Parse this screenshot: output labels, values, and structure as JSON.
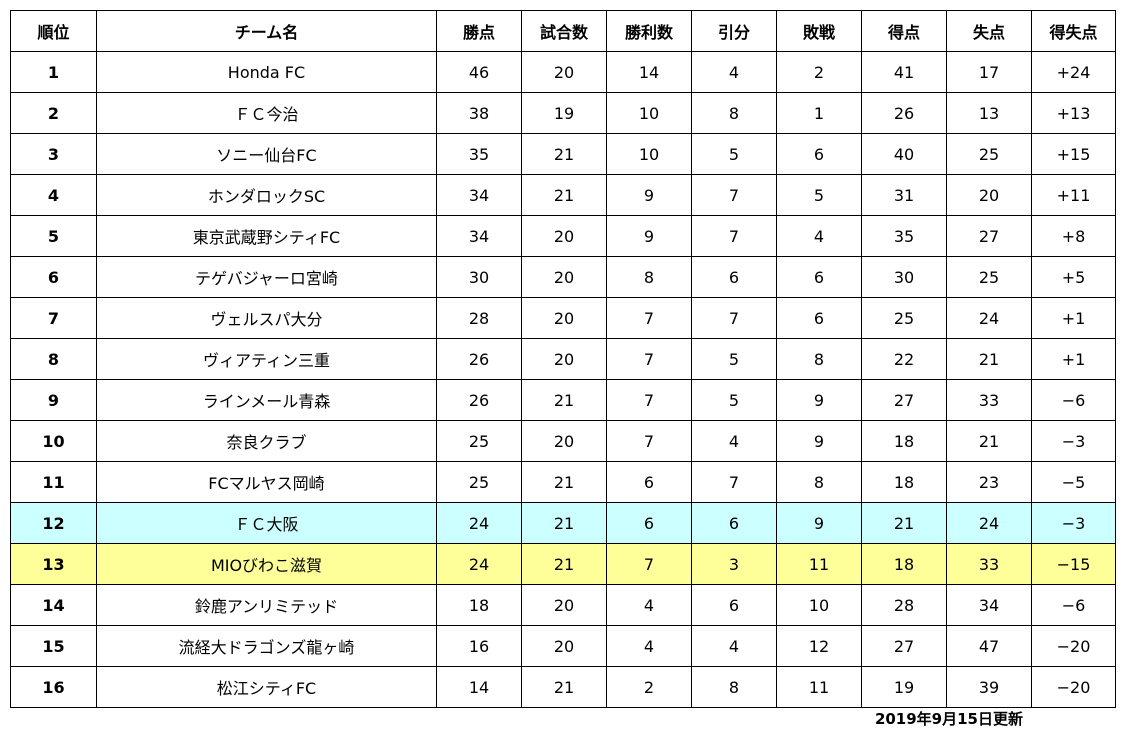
{
  "headers": [
    "順位",
    "チーム名",
    "勝点",
    "試合数",
    "勝利数",
    "引分",
    "敗戦",
    "得点",
    "失点",
    "得失点"
  ],
  "rows": [
    {
      "rank": "1",
      "team": "Honda FC",
      "pts": "46",
      "gp": "20",
      "w": "14",
      "d": "4",
      "l": "2",
      "gf": "41",
      "ga": "17",
      "gd": "+24"
    },
    {
      "rank": "2",
      "team": "ＦＣ今治",
      "pts": "38",
      "gp": "19",
      "w": "10",
      "d": "8",
      "l": "1",
      "gf": "26",
      "ga": "13",
      "gd": "+13"
    },
    {
      "rank": "3",
      "team": "ソニー仙台FC",
      "pts": "35",
      "gp": "21",
      "w": "10",
      "d": "5",
      "l": "6",
      "gf": "40",
      "ga": "25",
      "gd": "+15"
    },
    {
      "rank": "4",
      "team": "ホンダロックSC",
      "pts": "34",
      "gp": "21",
      "w": "9",
      "d": "7",
      "l": "5",
      "gf": "31",
      "ga": "20",
      "gd": "+11"
    },
    {
      "rank": "5",
      "team": "東京武蔵野シティFC",
      "pts": "34",
      "gp": "20",
      "w": "9",
      "d": "7",
      "l": "4",
      "gf": "35",
      "ga": "27",
      "gd": "+8"
    },
    {
      "rank": "6",
      "team": "テゲバジャーロ宮崎",
      "pts": "30",
      "gp": "20",
      "w": "8",
      "d": "6",
      "l": "6",
      "gf": "30",
      "ga": "25",
      "gd": "+5"
    },
    {
      "rank": "7",
      "team": "ヴェルスパ大分",
      "pts": "28",
      "gp": "20",
      "w": "7",
      "d": "7",
      "l": "6",
      "gf": "25",
      "ga": "24",
      "gd": "+1"
    },
    {
      "rank": "8",
      "team": "ヴィアティン三重",
      "pts": "26",
      "gp": "20",
      "w": "7",
      "d": "5",
      "l": "8",
      "gf": "22",
      "ga": "21",
      "gd": "+1"
    },
    {
      "rank": "9",
      "team": "ラインメール青森",
      "pts": "26",
      "gp": "21",
      "w": "7",
      "d": "5",
      "l": "9",
      "gf": "27",
      "ga": "33",
      "gd": "−6"
    },
    {
      "rank": "10",
      "team": "奈良クラブ",
      "pts": "25",
      "gp": "20",
      "w": "7",
      "d": "4",
      "l": "9",
      "gf": "18",
      "ga": "21",
      "gd": "−3"
    },
    {
      "rank": "11",
      "team": "FCマルヤス岡崎",
      "pts": "25",
      "gp": "21",
      "w": "6",
      "d": "7",
      "l": "8",
      "gf": "18",
      "ga": "23",
      "gd": "−5"
    },
    {
      "rank": "12",
      "team": "ＦＣ大阪",
      "pts": "24",
      "gp": "21",
      "w": "6",
      "d": "6",
      "l": "9",
      "gf": "21",
      "ga": "24",
      "gd": "−3"
    },
    {
      "rank": "13",
      "team": "MIOびわこ滋賀",
      "pts": "24",
      "gp": "21",
      "w": "7",
      "d": "3",
      "l": "11",
      "gf": "18",
      "ga": "33",
      "gd": "−15"
    },
    {
      "rank": "14",
      "team": "鈴鹿アンリミテッド",
      "pts": "18",
      "gp": "20",
      "w": "4",
      "d": "6",
      "l": "10",
      "gf": "28",
      "ga": "34",
      "gd": "−6"
    },
    {
      "rank": "15",
      "team": "流経大ドラゴンズ龍ヶ崎",
      "pts": "16",
      "gp": "20",
      "w": "4",
      "d": "4",
      "l": "12",
      "gf": "27",
      "ga": "47",
      "gd": "−20"
    },
    {
      "rank": "16",
      "team": "松江シティFC",
      "pts": "14",
      "gp": "21",
      "w": "2",
      "d": "8",
      "l": "11",
      "gf": "19",
      "ga": "39",
      "gd": "−20"
    }
  ],
  "highlights": {
    "row_12": "#ccffff",
    "row_13": "#ffff99"
  },
  "updated": "2019年9月15日更新"
}
